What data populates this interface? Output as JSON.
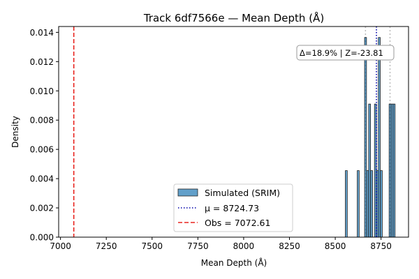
{
  "chart_data": {
    "type": "bar",
    "title": "Track 6df7566e — Mean Depth (Å)",
    "xlabel": "Mean Depth (Å)",
    "ylabel": "Density",
    "xlim": [
      6990,
      8900
    ],
    "ylim": [
      0,
      0.0144
    ],
    "xticks": [
      7000,
      7250,
      7500,
      7750,
      8000,
      8250,
      8500,
      8750
    ],
    "xtick_labels": [
      "7000",
      "7250",
      "7500",
      "7750",
      "8000",
      "8250",
      "8500",
      "8750"
    ],
    "yticks": [
      0.0,
      0.002,
      0.004,
      0.006,
      0.008,
      0.01,
      0.012,
      0.014
    ],
    "ytick_labels": [
      "0.000",
      "0.002",
      "0.004",
      "0.006",
      "0.008",
      "0.010",
      "0.012",
      "0.014"
    ],
    "grid": false,
    "legend_position": "lower center",
    "bin_width": 10.7,
    "series": [
      {
        "name": "Simulated (SRIM)",
        "kind": "histogram",
        "color": "#1f77b4",
        "bin_starts": [
          8555,
          8620,
          8660,
          8671,
          8682,
          8693,
          8714,
          8725,
          8735,
          8746,
          8794,
          8805,
          8816
        ],
        "values": [
          0.00455,
          0.00455,
          0.01365,
          0.00455,
          0.0091,
          0.00455,
          0.0091,
          0.00455,
          0.01365,
          0.00455,
          0.0091,
          0.0091,
          0.0091
        ]
      }
    ],
    "vlines": [
      {
        "name": "μ = 8724.73",
        "x": 8724.73,
        "style": "dotted",
        "color": "#0000aa"
      },
      {
        "name": "Obs = 7072.61",
        "x": 7072.61,
        "style": "dashed",
        "color": "#e8231e"
      }
    ],
    "aux_vlines": [
      {
        "x": 8665,
        "style": "dotted",
        "color": "#bbbbbb"
      },
      {
        "x": 8799,
        "style": "dotted",
        "color": "#bbbbbb"
      }
    ],
    "annotation": "Δ=18.9% | Z=-23.81"
  }
}
